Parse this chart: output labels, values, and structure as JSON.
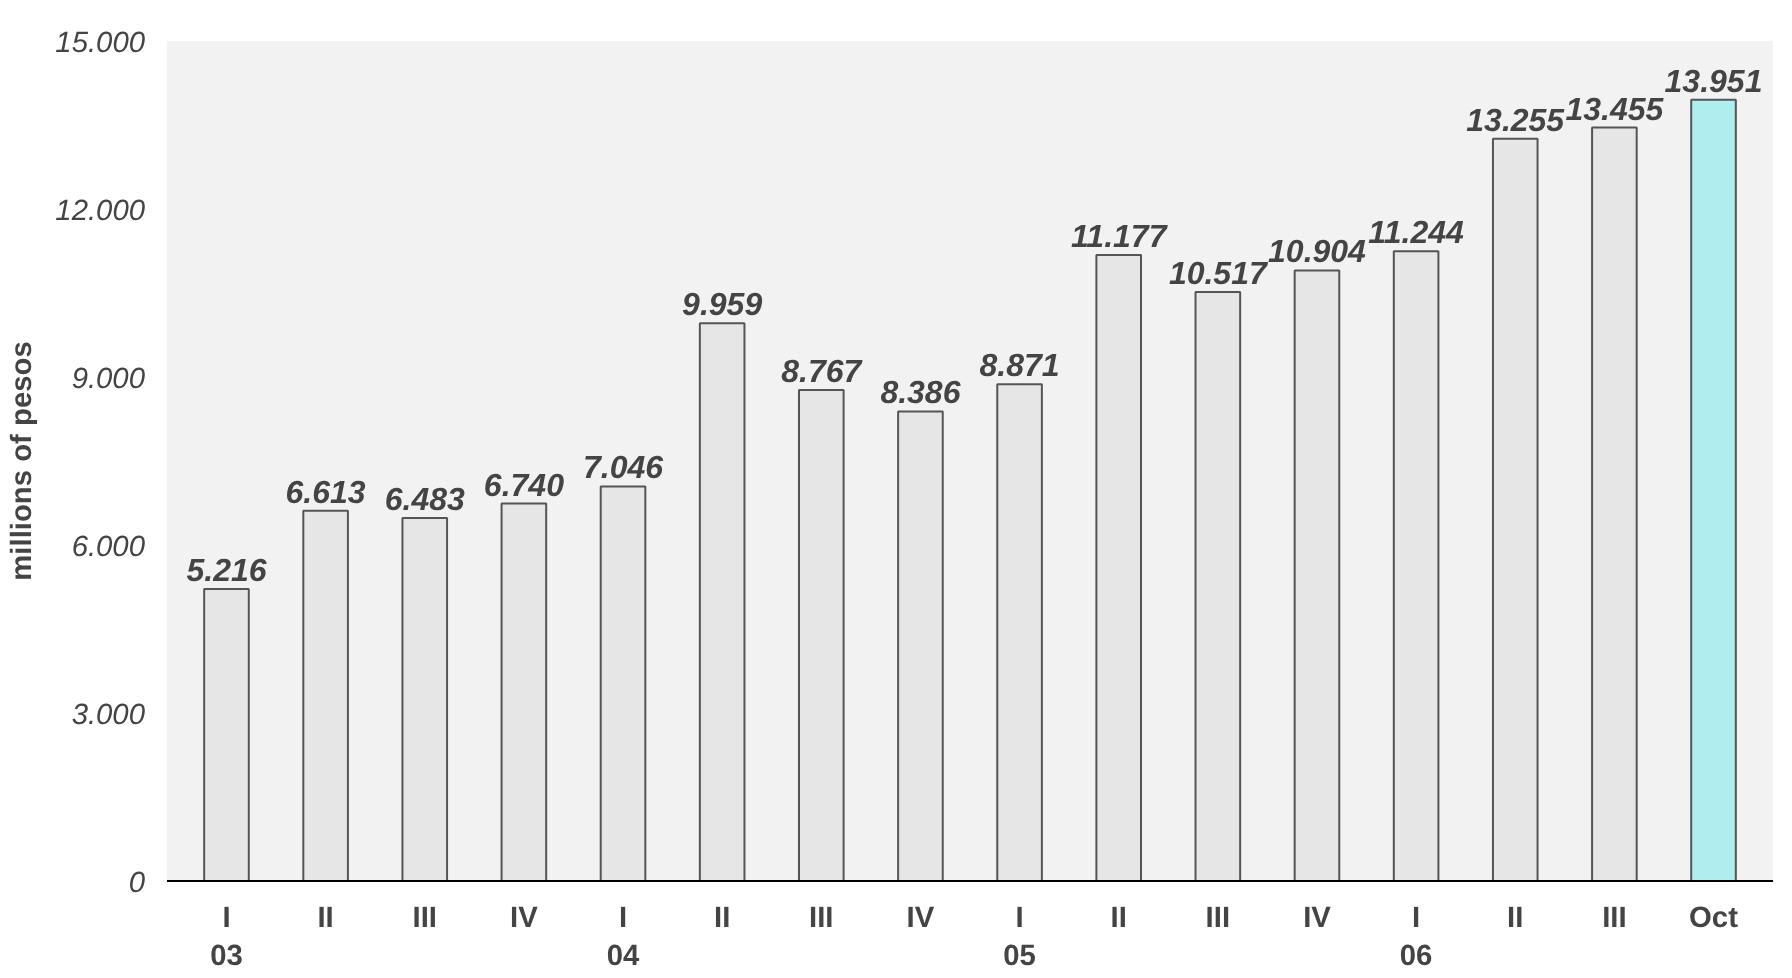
{
  "chart_data": {
    "type": "bar",
    "ylabel": "millions of pesos",
    "categories": [
      "I\n03",
      "II",
      "III",
      "IV",
      "I\n04",
      "II",
      "III",
      "IV",
      "I\n05",
      "II",
      "III",
      "IV",
      "I\n06",
      "II",
      "III",
      "Oct"
    ],
    "values": [
      5216,
      6613,
      6483,
      6740,
      7046,
      9959,
      8767,
      8386,
      8871,
      11177,
      10517,
      10904,
      11244,
      13255,
      13455,
      13951
    ],
    "value_labels": [
      "5.216",
      "6.613",
      "6.483",
      "6.740",
      "7.046",
      "9.959",
      "8.767",
      "8.386",
      "8.871",
      "11.177",
      "10.517",
      "10.904",
      "11.244",
      "13.255",
      "13.455",
      "13.951"
    ],
    "colors": [
      "#e6e6e6",
      "#e6e6e6",
      "#e6e6e6",
      "#e6e6e6",
      "#e6e6e6",
      "#e6e6e6",
      "#e6e6e6",
      "#e6e6e6",
      "#e6e6e6",
      "#e6e6e6",
      "#e6e6e6",
      "#e6e6e6",
      "#e6e6e6",
      "#e6e6e6",
      "#e6e6e6",
      "#aeeeee"
    ],
    "ylim": [
      0,
      15000
    ],
    "yticks": [
      {
        "value": 0,
        "label": "0"
      },
      {
        "value": 3000,
        "label": "3.000"
      },
      {
        "value": 6000,
        "label": "6.000"
      },
      {
        "value": 9000,
        "label": "9.000"
      },
      {
        "value": 12000,
        "label": "12.000"
      },
      {
        "value": 15000,
        "label": "15.000"
      }
    ],
    "grid": false
  }
}
